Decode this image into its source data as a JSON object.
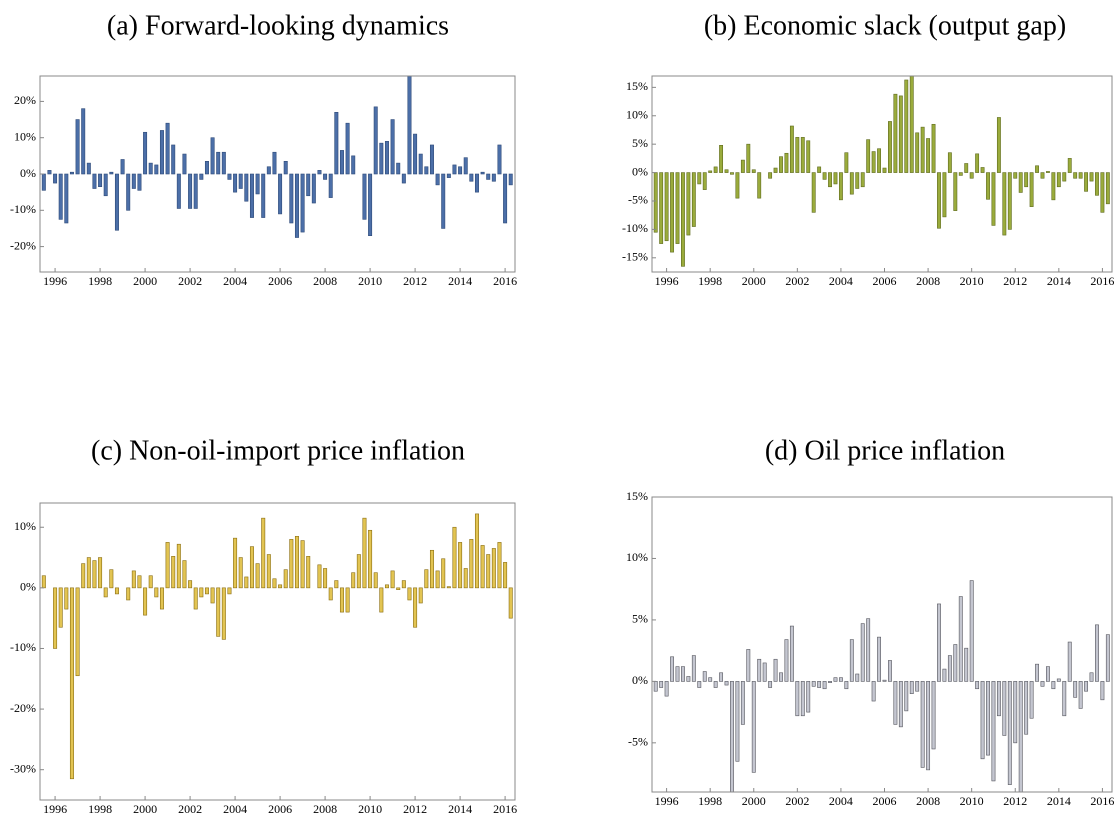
{
  "chart_data": [
    {
      "type": "bar",
      "title": "(a) Forward-looking dynamics",
      "color": "#4c6fa8",
      "stroke": "#2e4a78",
      "x": [
        1995.5,
        1995.75,
        1996,
        1996.25,
        1996.5,
        1996.75,
        1997,
        1997.25,
        1997.5,
        1997.75,
        1998,
        1998.25,
        1998.5,
        1998.75,
        1999,
        1999.25,
        1999.5,
        1999.75,
        2000,
        2000.25,
        2000.5,
        2000.75,
        2001,
        2001.25,
        2001.5,
        2001.75,
        2002,
        2002.25,
        2002.5,
        2002.75,
        2003,
        2003.25,
        2003.5,
        2003.75,
        2004,
        2004.25,
        2004.5,
        2004.75,
        2005,
        2005.25,
        2005.5,
        2005.75,
        2006,
        2006.25,
        2006.5,
        2006.75,
        2007,
        2007.25,
        2007.5,
        2007.75,
        2008,
        2008.25,
        2008.5,
        2008.75,
        2009,
        2009.25,
        2009.5,
        2009.75,
        2010,
        2010.25,
        2010.5,
        2010.75,
        2011,
        2011.25,
        2011.5,
        2011.75,
        2012,
        2012.25,
        2012.5,
        2012.75,
        2013,
        2013.25,
        2013.5,
        2013.75,
        2014,
        2014.25,
        2014.5,
        2014.75,
        2015,
        2015.25,
        2015.5,
        2015.75,
        2016,
        2016.25
      ],
      "values": [
        -4.5,
        1,
        -2.5,
        -12.5,
        -13.5,
        0.5,
        15,
        18,
        3,
        -4,
        -3.5,
        -6,
        0.5,
        -15.5,
        4,
        -10,
        -4,
        -4.5,
        11.5,
        3,
        2.5,
        12,
        14,
        8,
        -9.5,
        5.5,
        -9.5,
        -9.5,
        -1.5,
        3.5,
        10,
        6,
        6,
        -1.5,
        -5,
        -4,
        -7.5,
        -12,
        -5.5,
        -12,
        2,
        6,
        -11,
        3.5,
        -13.5,
        -17.5,
        -16,
        -6,
        -8,
        1,
        -1.5,
        -6.5,
        17,
        6.5,
        14,
        5,
        0,
        -12.5,
        -17,
        18.5,
        8.5,
        9,
        15,
        3,
        -2.5,
        27,
        11,
        5.5,
        2,
        8,
        -3,
        -15,
        -1,
        2.5,
        2,
        4.5,
        -2,
        -5,
        0.5,
        -1.5,
        -2,
        8,
        -13.5,
        -3
      ],
      "xlim": [
        1995.33,
        2016.44
      ],
      "xticks": [
        1996,
        1998,
        2000,
        2002,
        2004,
        2006,
        2008,
        2010,
        2012,
        2014,
        2016
      ],
      "ylim": [
        -27,
        27
      ],
      "yticks": [
        {
          "value": -20,
          "label": "-20%"
        },
        {
          "value": -10,
          "label": "-10%"
        },
        {
          "value": 0,
          "label": "0%"
        },
        {
          "value": 10,
          "label": "10%"
        },
        {
          "value": 20,
          "label": "20%"
        }
      ]
    },
    {
      "type": "bar",
      "title": "(b) Economic slack (output gap)",
      "color": "#9aab3c",
      "stroke": "#5f6b1e",
      "x": [
        1995.5,
        1995.75,
        1996,
        1996.25,
        1996.5,
        1996.75,
        1997,
        1997.25,
        1997.5,
        1997.75,
        1998,
        1998.25,
        1998.5,
        1998.75,
        1999,
        1999.25,
        1999.5,
        1999.75,
        2000,
        2000.25,
        2000.5,
        2000.75,
        2001,
        2001.25,
        2001.5,
        2001.75,
        2002,
        2002.25,
        2002.5,
        2002.75,
        2003,
        2003.25,
        2003.5,
        2003.75,
        2004,
        2004.25,
        2004.5,
        2004.75,
        2005,
        2005.25,
        2005.5,
        2005.75,
        2006,
        2006.25,
        2006.5,
        2006.75,
        2007,
        2007.25,
        2007.5,
        2007.75,
        2008,
        2008.25,
        2008.5,
        2008.75,
        2009,
        2009.25,
        2009.5,
        2009.75,
        2010,
        2010.25,
        2010.5,
        2010.75,
        2011,
        2011.25,
        2011.5,
        2011.75,
        2012,
        2012.25,
        2012.5,
        2012.75,
        2013,
        2013.25,
        2013.5,
        2013.75,
        2014,
        2014.25,
        2014.5,
        2014.75,
        2015,
        2015.25,
        2015.5,
        2015.75,
        2016,
        2016.25
      ],
      "values": [
        -10.5,
        -12.5,
        -12,
        -14,
        -12.5,
        -16.5,
        -11,
        -9.5,
        -2,
        -3,
        0.3,
        1,
        4.8,
        0.5,
        -0.3,
        -4.5,
        2.2,
        5,
        0.5,
        -4.5,
        0,
        -1,
        0.8,
        2.8,
        3.4,
        8.2,
        6.2,
        6.2,
        5.6,
        -7,
        1,
        -1.2,
        -2.5,
        -2,
        -4.8,
        3.5,
        -3.8,
        -2.8,
        -2.5,
        5.8,
        3.7,
        4.2,
        0.8,
        9,
        13.8,
        13.5,
        16.3,
        17,
        7,
        8,
        6,
        8.5,
        -9.8,
        -7.8,
        3.5,
        -6.7,
        -0.5,
        1.6,
        -1,
        3.3,
        0.9,
        -4.7,
        -9.3,
        9.7,
        -11,
        -10,
        -1,
        -3.5,
        -2.5,
        -6,
        1.2,
        -1,
        0.2,
        -4.8,
        -2.5,
        -1.5,
        2.5,
        -1,
        -1,
        -3.3,
        -1.5,
        -4,
        -7,
        -5.5
      ],
      "xlim": [
        1995.33,
        2016.44
      ],
      "xticks": [
        1996,
        1998,
        2000,
        2002,
        2004,
        2006,
        2008,
        2010,
        2012,
        2014,
        2016
      ],
      "ylim": [
        -17.5,
        17
      ],
      "yticks": [
        {
          "value": -15,
          "label": "-15%"
        },
        {
          "value": -10,
          "label": "-10%"
        },
        {
          "value": -5,
          "label": "-5%"
        },
        {
          "value": 0,
          "label": "0%"
        },
        {
          "value": 5,
          "label": "5%"
        },
        {
          "value": 10,
          "label": "10%"
        },
        {
          "value": 15,
          "label": "15%"
        }
      ]
    },
    {
      "type": "bar",
      "title": "(c) Non-oil-import price inflation",
      "color": "#e2c452",
      "stroke": "#8a6d10",
      "x": [
        1995.5,
        1995.75,
        1996,
        1996.25,
        1996.5,
        1996.75,
        1997,
        1997.25,
        1997.5,
        1997.75,
        1998,
        1998.25,
        1998.5,
        1998.75,
        1999,
        1999.25,
        1999.5,
        1999.75,
        2000,
        2000.25,
        2000.5,
        2000.75,
        2001,
        2001.25,
        2001.5,
        2001.75,
        2002,
        2002.25,
        2002.5,
        2002.75,
        2003,
        2003.25,
        2003.5,
        2003.75,
        2004,
        2004.25,
        2004.5,
        2004.75,
        2005,
        2005.25,
        2005.5,
        2005.75,
        2006,
        2006.25,
        2006.5,
        2006.75,
        2007,
        2007.25,
        2007.5,
        2007.75,
        2008,
        2008.25,
        2008.5,
        2008.75,
        2009,
        2009.25,
        2009.5,
        2009.75,
        2010,
        2010.25,
        2010.5,
        2010.75,
        2011,
        2011.25,
        2011.5,
        2011.75,
        2012,
        2012.25,
        2012.5,
        2012.75,
        2013,
        2013.25,
        2013.5,
        2013.75,
        2014,
        2014.25,
        2014.5,
        2014.75,
        2015,
        2015.25,
        2015.5,
        2015.75,
        2016,
        2016.25
      ],
      "values": [
        2,
        0,
        -10,
        -6.5,
        -3.5,
        -31.5,
        -14.5,
        4,
        5,
        4.5,
        5,
        -1.5,
        3,
        -1,
        0,
        -2,
        2.8,
        2,
        -4.5,
        2,
        -1.5,
        -3.5,
        7.5,
        5.2,
        7.2,
        4.5,
        1.2,
        -3.5,
        -1.5,
        -1,
        -2.5,
        -8,
        -8.5,
        -1,
        8.2,
        5,
        1.8,
        6.8,
        4,
        11.5,
        5.5,
        1.5,
        0.5,
        3,
        8,
        8.5,
        7.8,
        5.2,
        0,
        3.8,
        3.2,
        -2,
        1.2,
        -4,
        -4,
        2.5,
        5.5,
        11.5,
        9.5,
        2.5,
        -4,
        0.5,
        2.8,
        -0.3,
        1.2,
        -2,
        -6.5,
        -2.5,
        3,
        6.2,
        2.8,
        4.8,
        0.2,
        10,
        7.5,
        3.2,
        8,
        12.2,
        7,
        5.5,
        6.5,
        7.5,
        4.2,
        -5
      ],
      "xlim": [
        1995.33,
        2016.44
      ],
      "xticks": [
        1996,
        1998,
        2000,
        2002,
        2004,
        2006,
        2008,
        2010,
        2012,
        2014,
        2016
      ],
      "ylim": [
        -35,
        14
      ],
      "yticks": [
        {
          "value": -30,
          "label": "-30%"
        },
        {
          "value": -20,
          "label": "-20%"
        },
        {
          "value": -10,
          "label": "-10%"
        },
        {
          "value": 0,
          "label": "0%"
        },
        {
          "value": 10,
          "label": "10%"
        }
      ]
    },
    {
      "type": "bar",
      "title": "(d) Oil price inflation",
      "color": "#c4c6d0",
      "stroke": "#55565e",
      "x": [
        1995.5,
        1995.75,
        1996,
        1996.25,
        1996.5,
        1996.75,
        1997,
        1997.25,
        1997.5,
        1997.75,
        1998,
        1998.25,
        1998.5,
        1998.75,
        1999,
        1999.25,
        1999.5,
        1999.75,
        2000,
        2000.25,
        2000.5,
        2000.75,
        2001,
        2001.25,
        2001.5,
        2001.75,
        2002,
        2002.25,
        2002.5,
        2002.75,
        2003,
        2003.25,
        2003.5,
        2003.75,
        2004,
        2004.25,
        2004.5,
        2004.75,
        2005,
        2005.25,
        2005.5,
        2005.75,
        2006,
        2006.25,
        2006.5,
        2006.75,
        2007,
        2007.25,
        2007.5,
        2007.75,
        2008,
        2008.25,
        2008.5,
        2008.75,
        2009,
        2009.25,
        2009.5,
        2009.75,
        2010,
        2010.25,
        2010.5,
        2010.75,
        2011,
        2011.25,
        2011.5,
        2011.75,
        2012,
        2012.25,
        2012.5,
        2012.75,
        2013,
        2013.25,
        2013.5,
        2013.75,
        2014,
        2014.25,
        2014.5,
        2014.75,
        2015,
        2015.25,
        2015.5,
        2015.75,
        2016,
        2016.25
      ],
      "values": [
        -0.8,
        -0.5,
        -1.2,
        2,
        1.2,
        1.2,
        0.4,
        2.1,
        -0.5,
        0.8,
        0.3,
        -0.5,
        0.7,
        -0.3,
        -9,
        -6.5,
        -3.5,
        2.6,
        -7.4,
        1.8,
        1.5,
        -0.5,
        1.8,
        0.7,
        3.4,
        4.5,
        -2.8,
        -2.8,
        -2.5,
        -0.4,
        -0.5,
        -0.6,
        -0.1,
        0.3,
        0.3,
        -0.6,
        3.4,
        0.6,
        4.7,
        5.1,
        -1.6,
        3.6,
        0.1,
        1.7,
        -3.5,
        -3.7,
        -2.4,
        -1,
        -0.8,
        -7,
        -7.2,
        -5.5,
        6.3,
        1,
        2.1,
        3,
        6.9,
        2.7,
        8.2,
        -0.6,
        -6.3,
        -6,
        -8.1,
        -2.8,
        -4.4,
        -8.4,
        -5,
        -9,
        -4.3,
        -3,
        1.4,
        -0.4,
        1.2,
        -0.6,
        0.2,
        -2.8,
        3.2,
        -1.3,
        -2.2,
        -0.8,
        0.7,
        4.6,
        -1.5,
        3.8
      ],
      "xlim": [
        1995.33,
        2016.44
      ],
      "xticks": [
        1996,
        1998,
        2000,
        2002,
        2004,
        2006,
        2008,
        2010,
        2012,
        2014,
        2016
      ],
      "ylim": [
        -9,
        15
      ],
      "yticks": [
        {
          "value": -5,
          "label": "-5%"
        },
        {
          "value": 0,
          "label": "0%"
        },
        {
          "value": 5,
          "label": "5%"
        },
        {
          "value": 10,
          "label": "10%"
        },
        {
          "value": 15,
          "label": "15%"
        }
      ]
    }
  ]
}
